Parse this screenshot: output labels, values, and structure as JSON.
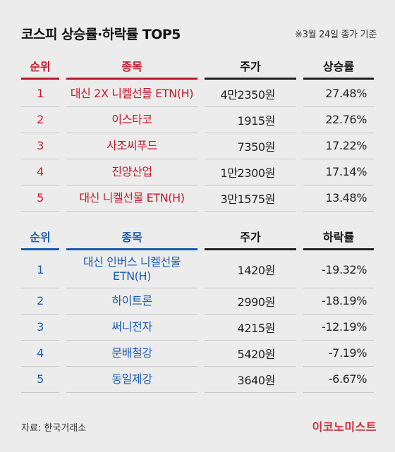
{
  "title": "코스피 상승률·하락률 TOP5",
  "date_note": "※3월 24일 종가 기준",
  "gainers": {
    "headers": {
      "rank": "순위",
      "name": "종목",
      "price": "주가",
      "rate": "상승률"
    },
    "rows": [
      {
        "rank": "1",
        "name": "대신 2X 니켈선물 ETN(H)",
        "price": "4만2350원",
        "rate": "27.48%"
      },
      {
        "rank": "2",
        "name": "이스타코",
        "price": "1915원",
        "rate": "22.76%"
      },
      {
        "rank": "3",
        "name": "사조씨푸드",
        "price": "7350원",
        "rate": "17.22%"
      },
      {
        "rank": "4",
        "name": "진양산업",
        "price": "1만2300원",
        "rate": "17.14%"
      },
      {
        "rank": "5",
        "name": "대신 니켈선물 ETN(H)",
        "price": "3만1575원",
        "rate": "13.48%"
      }
    ]
  },
  "losers": {
    "headers": {
      "rank": "순위",
      "name": "종목",
      "price": "주가",
      "rate": "하락률"
    },
    "rows": [
      {
        "rank": "1",
        "name": "대신 인버스 니켈선물 ETN(H)",
        "price": "1420원",
        "rate": "-19.32%"
      },
      {
        "rank": "2",
        "name": "하이트론",
        "price": "2990원",
        "rate": "-18.19%"
      },
      {
        "rank": "3",
        "name": "써니전자",
        "price": "4215원",
        "rate": "-12.19%"
      },
      {
        "rank": "4",
        "name": "문배철강",
        "price": "5420원",
        "rate": "-7.19%"
      },
      {
        "rank": "5",
        "name": "동일제강",
        "price": "3640원",
        "rate": "-6.67%"
      }
    ]
  },
  "source": "자료: 한국거래소",
  "logo": "이코노미스트",
  "colors": {
    "gain": "#c21a2b",
    "loss": "#1a5bb0",
    "logo": "#d6283a",
    "background": "#ececec"
  }
}
